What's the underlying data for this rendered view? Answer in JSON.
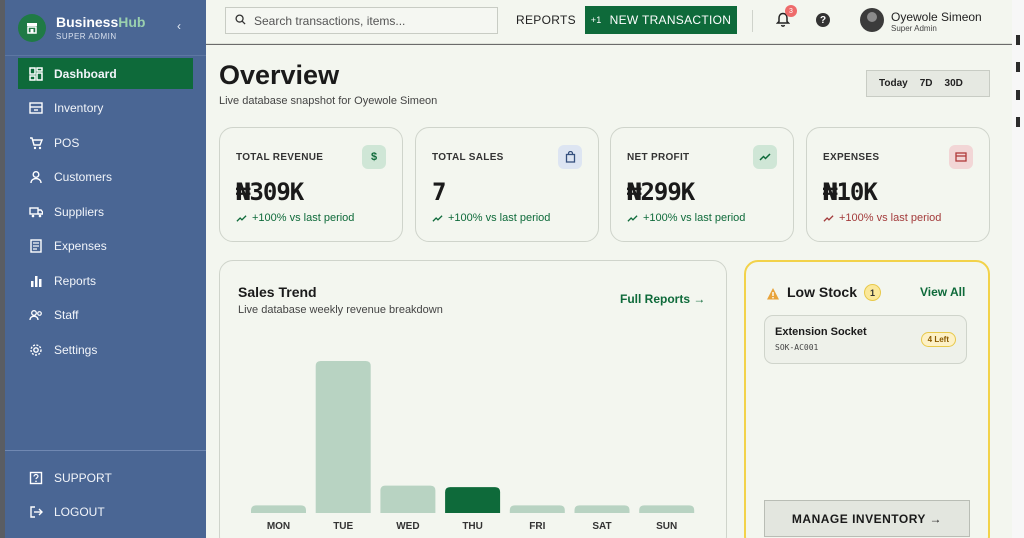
{
  "sidebar": {
    "brand": {
      "name_main": "Business",
      "name_accent": "Hub",
      "role": "SUPER ADMIN"
    },
    "items": [
      {
        "label": "Dashboard",
        "icon": "dashboard-icon",
        "active": true
      },
      {
        "label": "Inventory",
        "icon": "inventory-icon"
      },
      {
        "label": "POS",
        "icon": "cart-icon"
      },
      {
        "label": "Customers",
        "icon": "user-icon"
      },
      {
        "label": "Suppliers",
        "icon": "truck-icon"
      },
      {
        "label": "Expenses",
        "icon": "receipt-icon"
      },
      {
        "label": "Reports",
        "icon": "bar-chart-icon"
      },
      {
        "label": "Staff",
        "icon": "staff-icon"
      },
      {
        "label": "Settings",
        "icon": "gear-icon"
      }
    ],
    "footer": [
      {
        "label": "SUPPORT",
        "icon": "help-square-icon"
      },
      {
        "label": "LOGOUT",
        "icon": "logout-icon"
      }
    ]
  },
  "topbar": {
    "search_placeholder": "Search transactions, items...",
    "reports_label": "REPORTS",
    "new_tx_plus": "+1",
    "new_tx_label": "NEW TRANSACTION",
    "notification_count": "3",
    "help_glyph": "?",
    "user_name": "Oyewole Simeon",
    "user_role": "Super Admin"
  },
  "overview": {
    "title": "Overview",
    "subtitle": "Live database snapshot for Oyewole Simeon",
    "ranges": [
      "Today",
      "7D",
      "30D"
    ]
  },
  "kpis": [
    {
      "label": "TOTAL REVENUE",
      "value": "₦309K",
      "delta": "+100% vs last period",
      "icon": "dollar-icon",
      "icon_glyph": "$",
      "icon_bg": "#cfe6d6",
      "icon_color": "#0e6a3a",
      "delta_color": "#0e6a3a"
    },
    {
      "label": "TOTAL SALES",
      "value": "7",
      "delta": "+100% vs last period",
      "icon": "bag-icon",
      "icon_glyph": "",
      "icon_bg": "#dde5f2",
      "icon_color": "#35507e",
      "delta_color": "#0e6a3a"
    },
    {
      "label": "NET PROFIT",
      "value": "₦299K",
      "delta": "+100% vs last period",
      "icon": "trend-up-icon",
      "icon_glyph": "",
      "icon_bg": "#cfe6d6",
      "icon_color": "#0e6a3a",
      "delta_color": "#0e6a3a"
    },
    {
      "label": "EXPENSES",
      "value": "₦10K",
      "delta": "+100% vs last period",
      "icon": "card-icon",
      "icon_glyph": "",
      "icon_bg": "#f2d6d6",
      "icon_color": "#b03a3a",
      "delta_color": "#a33b3b"
    }
  ],
  "sales_trend": {
    "title": "Sales Trend",
    "subtitle": "Live database weekly revenue breakdown",
    "link": "Full Reports →"
  },
  "chart_data": {
    "type": "bar",
    "categories": [
      "MON",
      "TUE",
      "WED",
      "THU",
      "FRI",
      "SAT",
      "SUN"
    ],
    "values": [
      5,
      100,
      18,
      17,
      5,
      5,
      5
    ],
    "highlight_index": 3,
    "colors": {
      "bar": "#b8d3c2",
      "highlight": "#0e6a3a"
    },
    "ylim": [
      0,
      100
    ]
  },
  "low_stock": {
    "title": "Low Stock",
    "count": "1",
    "view_all": "View All",
    "items": [
      {
        "name": "Extension Socket",
        "sku": "SOK-AC001",
        "left": "4 Left"
      }
    ],
    "manage_label": "MANAGE INVENTORY →"
  }
}
